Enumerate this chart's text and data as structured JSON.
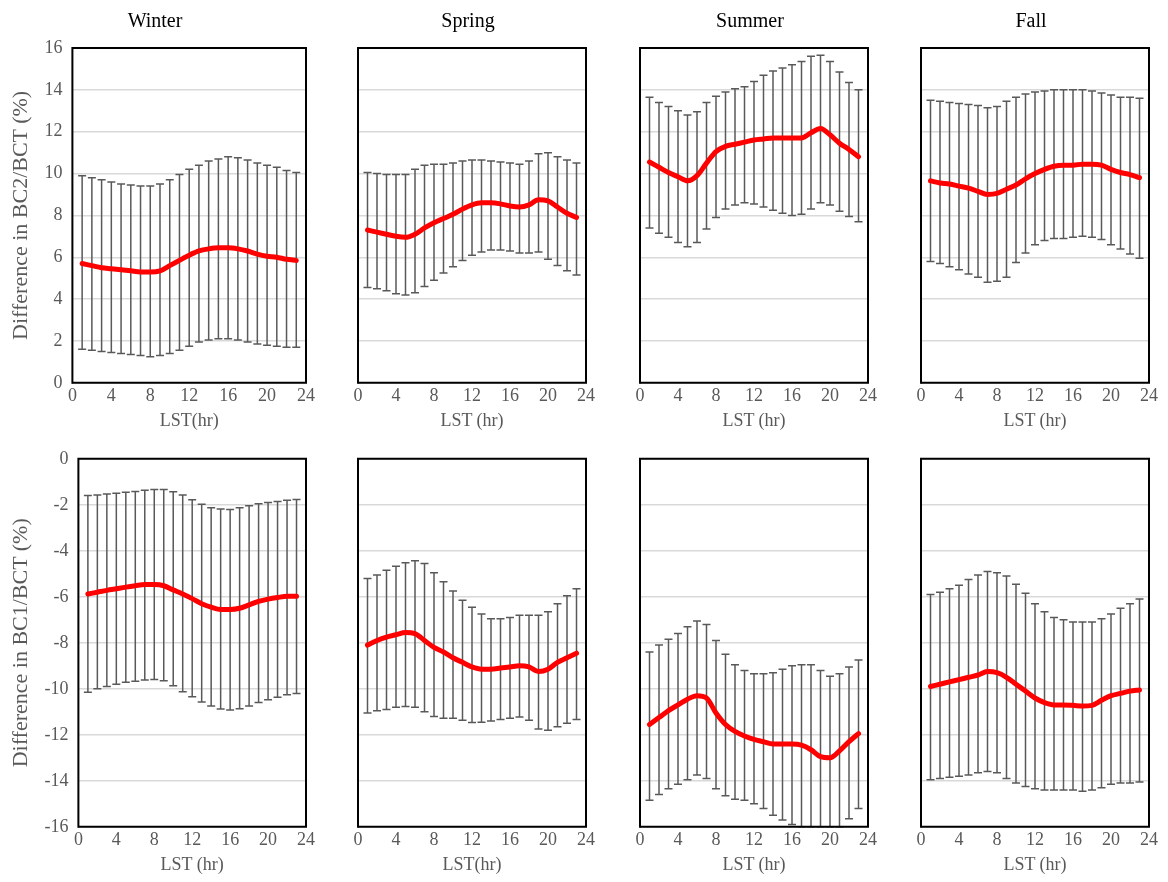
{
  "chart_data": [
    {
      "type": "line",
      "title": "Winter",
      "ylabel": "Difference in BC2/BCT (%)",
      "xlabel": "LST(hr)",
      "x": [
        1,
        2,
        3,
        4,
        5,
        6,
        7,
        8,
        9,
        10,
        11,
        12,
        13,
        14,
        15,
        16,
        17,
        18,
        19,
        20,
        21,
        22,
        23
      ],
      "xlim": [
        0,
        24
      ],
      "xticks": [
        0,
        4,
        8,
        12,
        16,
        20,
        24
      ],
      "ylim": [
        0,
        16
      ],
      "yticks": [
        0,
        2,
        4,
        6,
        8,
        10,
        12,
        14,
        16
      ],
      "grid": "y",
      "legend": false,
      "marker": "none",
      "series": [
        {
          "color": "#ff0000",
          "values": [
            5.7,
            5.6,
            5.5,
            5.45,
            5.4,
            5.35,
            5.3,
            5.3,
            5.35,
            5.6,
            5.85,
            6.1,
            6.3,
            6.4,
            6.45,
            6.45,
            6.4,
            6.3,
            6.15,
            6.05,
            6.0,
            5.9,
            5.85
          ],
          "errors": [
            [
              1.6,
              9.9
            ],
            [
              1.55,
              9.8
            ],
            [
              1.5,
              9.7
            ],
            [
              1.45,
              9.6
            ],
            [
              1.4,
              9.5
            ],
            [
              1.35,
              9.45
            ],
            [
              1.3,
              9.4
            ],
            [
              1.25,
              9.4
            ],
            [
              1.3,
              9.5
            ],
            [
              1.4,
              9.7
            ],
            [
              1.55,
              9.95
            ],
            [
              1.75,
              10.2
            ],
            [
              1.95,
              10.4
            ],
            [
              2.05,
              10.6
            ],
            [
              2.1,
              10.7
            ],
            [
              2.1,
              10.8
            ],
            [
              2.05,
              10.75
            ],
            [
              1.95,
              10.65
            ],
            [
              1.85,
              10.5
            ],
            [
              1.8,
              10.4
            ],
            [
              1.75,
              10.3
            ],
            [
              1.7,
              10.15
            ],
            [
              1.7,
              10.05
            ]
          ]
        }
      ]
    },
    {
      "type": "line",
      "title": "Spring",
      "xlabel": "LST (hr)",
      "x": [
        1,
        2,
        3,
        4,
        5,
        6,
        7,
        8,
        9,
        10,
        11,
        12,
        13,
        14,
        15,
        16,
        17,
        18,
        19,
        20,
        21,
        22,
        23
      ],
      "xlim": [
        0,
        24
      ],
      "xticks": [
        0,
        4,
        8,
        12,
        16,
        20,
        24
      ],
      "ylim": [
        0,
        16
      ],
      "yticks": [
        0,
        2,
        4,
        6,
        8,
        10,
        12,
        14,
        16
      ],
      "grid": "y",
      "legend": false,
      "marker": "none",
      "tick_labels": "x",
      "series": [
        {
          "color": "#ff0000",
          "values": [
            7.3,
            7.2,
            7.1,
            7.0,
            6.95,
            7.1,
            7.4,
            7.65,
            7.85,
            8.05,
            8.3,
            8.5,
            8.6,
            8.6,
            8.55,
            8.45,
            8.4,
            8.5,
            8.75,
            8.7,
            8.4,
            8.1,
            7.9
          ],
          "errors": [
            [
              4.55,
              10.05
            ],
            [
              4.5,
              10.0
            ],
            [
              4.4,
              9.95
            ],
            [
              4.25,
              9.95
            ],
            [
              4.2,
              9.95
            ],
            [
              4.3,
              10.2
            ],
            [
              4.6,
              10.4
            ],
            [
              4.9,
              10.45
            ],
            [
              5.25,
              10.45
            ],
            [
              5.55,
              10.5
            ],
            [
              5.85,
              10.6
            ],
            [
              6.1,
              10.65
            ],
            [
              6.25,
              10.65
            ],
            [
              6.35,
              10.6
            ],
            [
              6.35,
              10.55
            ],
            [
              6.3,
              10.5
            ],
            [
              6.2,
              10.45
            ],
            [
              6.2,
              10.6
            ],
            [
              6.25,
              10.95
            ],
            [
              5.9,
              11.0
            ],
            [
              5.6,
              10.8
            ],
            [
              5.35,
              10.65
            ],
            [
              5.15,
              10.5
            ]
          ]
        }
      ]
    },
    {
      "type": "line",
      "title": "Summer",
      "xlabel": "LST (hr)",
      "x": [
        1,
        2,
        3,
        4,
        5,
        6,
        7,
        8,
        9,
        10,
        11,
        12,
        13,
        14,
        15,
        16,
        17,
        18,
        19,
        20,
        21,
        22,
        23
      ],
      "xlim": [
        0,
        24
      ],
      "xticks": [
        0,
        4,
        8,
        12,
        16,
        20,
        24
      ],
      "ylim": [
        0,
        16
      ],
      "yticks": [
        0,
        2,
        4,
        6,
        8,
        10,
        12,
        14,
        16
      ],
      "grid": "y",
      "legend": false,
      "marker": "none",
      "tick_labels": "x",
      "series": [
        {
          "color": "#ff0000",
          "values": [
            10.55,
            10.3,
            10.05,
            9.85,
            9.65,
            9.9,
            10.5,
            11.05,
            11.3,
            11.4,
            11.5,
            11.6,
            11.65,
            11.7,
            11.7,
            11.7,
            11.7,
            11.95,
            12.15,
            11.85,
            11.45,
            11.15,
            10.8
          ],
          "errors": [
            [
              7.4,
              13.65
            ],
            [
              7.15,
              13.4
            ],
            [
              6.95,
              13.2
            ],
            [
              6.7,
              13.0
            ],
            [
              6.5,
              12.8
            ],
            [
              6.7,
              12.95
            ],
            [
              7.35,
              13.4
            ],
            [
              7.9,
              13.7
            ],
            [
              8.3,
              13.9
            ],
            [
              8.5,
              14.05
            ],
            [
              8.6,
              14.15
            ],
            [
              8.55,
              14.4
            ],
            [
              8.4,
              14.7
            ],
            [
              8.25,
              14.9
            ],
            [
              8.1,
              15.05
            ],
            [
              8.0,
              15.2
            ],
            [
              8.05,
              15.35
            ],
            [
              8.3,
              15.6
            ],
            [
              8.6,
              15.65
            ],
            [
              8.5,
              15.35
            ],
            [
              8.2,
              14.85
            ],
            [
              7.95,
              14.35
            ],
            [
              7.7,
              14.0
            ]
          ]
        }
      ]
    },
    {
      "type": "line",
      "title": "Fall",
      "xlabel": "LST (hr)",
      "x": [
        1,
        2,
        3,
        4,
        5,
        6,
        7,
        8,
        9,
        10,
        11,
        12,
        13,
        14,
        15,
        16,
        17,
        18,
        19,
        20,
        21,
        22,
        23
      ],
      "xlim": [
        0,
        24
      ],
      "xticks": [
        0,
        4,
        8,
        12,
        16,
        20,
        24
      ],
      "ylim": [
        0,
        16
      ],
      "yticks": [
        0,
        2,
        4,
        6,
        8,
        10,
        12,
        14,
        16
      ],
      "grid": "y",
      "legend": false,
      "marker": "none",
      "tick_labels": "x",
      "series": [
        {
          "color": "#ff0000",
          "values": [
            9.65,
            9.55,
            9.5,
            9.4,
            9.3,
            9.15,
            9.0,
            9.05,
            9.25,
            9.45,
            9.75,
            10.0,
            10.2,
            10.35,
            10.4,
            10.4,
            10.45,
            10.45,
            10.4,
            10.2,
            10.05,
            9.95,
            9.8
          ],
          "errors": [
            [
              5.8,
              13.5
            ],
            [
              5.7,
              13.45
            ],
            [
              5.55,
              13.4
            ],
            [
              5.4,
              13.35
            ],
            [
              5.2,
              13.3
            ],
            [
              5.05,
              13.25
            ],
            [
              4.8,
              13.15
            ],
            [
              4.85,
              13.2
            ],
            [
              5.05,
              13.45
            ],
            [
              5.75,
              13.65
            ],
            [
              6.2,
              13.8
            ],
            [
              6.6,
              13.9
            ],
            [
              6.8,
              13.95
            ],
            [
              6.9,
              14.0
            ],
            [
              6.9,
              14.0
            ],
            [
              6.95,
              14.0
            ],
            [
              7.0,
              14.0
            ],
            [
              6.95,
              13.95
            ],
            [
              6.85,
              13.85
            ],
            [
              6.6,
              13.75
            ],
            [
              6.4,
              13.65
            ],
            [
              6.15,
              13.65
            ],
            [
              5.95,
              13.6
            ]
          ]
        }
      ]
    },
    {
      "type": "line",
      "ylabel": "Difference in BC1/BCT (%)",
      "xlabel": "LST (hr)",
      "x": [
        1,
        2,
        3,
        4,
        5,
        6,
        7,
        8,
        9,
        10,
        11,
        12,
        13,
        14,
        15,
        16,
        17,
        18,
        19,
        20,
        21,
        22,
        23
      ],
      "xlim": [
        0,
        24
      ],
      "xticks": [
        0,
        4,
        8,
        12,
        16,
        20,
        24
      ],
      "ylim": [
        -16,
        0
      ],
      "yticks": [
        -16,
        -14,
        -12,
        -10,
        -8,
        -6,
        -4,
        -2,
        0
      ],
      "grid": "y",
      "legend": false,
      "marker": "none",
      "series": [
        {
          "color": "#ff0000",
          "values": [
            -5.88,
            -5.8,
            -5.72,
            -5.65,
            -5.58,
            -5.52,
            -5.47,
            -5.47,
            -5.52,
            -5.7,
            -5.88,
            -6.08,
            -6.3,
            -6.45,
            -6.55,
            -6.55,
            -6.5,
            -6.35,
            -6.2,
            -6.1,
            -6.03,
            -5.98,
            -5.98
          ],
          "errors": [
            [
              -10.15,
              -1.6
            ],
            [
              -10.0,
              -1.57
            ],
            [
              -9.9,
              -1.53
            ],
            [
              -9.8,
              -1.5
            ],
            [
              -9.72,
              -1.45
            ],
            [
              -9.67,
              -1.42
            ],
            [
              -9.62,
              -1.37
            ],
            [
              -9.6,
              -1.33
            ],
            [
              -9.65,
              -1.33
            ],
            [
              -9.87,
              -1.43
            ],
            [
              -10.13,
              -1.57
            ],
            [
              -10.35,
              -1.78
            ],
            [
              -10.57,
              -1.98
            ],
            [
              -10.75,
              -2.13
            ],
            [
              -10.88,
              -2.18
            ],
            [
              -10.92,
              -2.2
            ],
            [
              -10.87,
              -2.13
            ],
            [
              -10.75,
              -2.04
            ],
            [
              -10.6,
              -1.95
            ],
            [
              -10.48,
              -1.9
            ],
            [
              -10.37,
              -1.86
            ],
            [
              -10.26,
              -1.8
            ],
            [
              -10.2,
              -1.77
            ]
          ]
        }
      ]
    },
    {
      "type": "line",
      "xlabel": "LST(hr)",
      "x": [
        1,
        2,
        3,
        4,
        5,
        6,
        7,
        8,
        9,
        10,
        11,
        12,
        13,
        14,
        15,
        16,
        17,
        18,
        19,
        20,
        21,
        22,
        23
      ],
      "xlim": [
        0,
        24
      ],
      "xticks": [
        0,
        4,
        8,
        12,
        16,
        20,
        24
      ],
      "ylim": [
        -16,
        0
      ],
      "yticks": [
        -16,
        -14,
        -12,
        -10,
        -8,
        -6,
        -4,
        -2,
        0
      ],
      "grid": "y",
      "legend": false,
      "marker": "none",
      "tick_labels": "x",
      "series": [
        {
          "color": "#ff0000",
          "values": [
            -8.1,
            -7.9,
            -7.75,
            -7.65,
            -7.55,
            -7.6,
            -7.9,
            -8.2,
            -8.4,
            -8.65,
            -8.85,
            -9.05,
            -9.15,
            -9.15,
            -9.1,
            -9.05,
            -9.0,
            -9.05,
            -9.25,
            -9.15,
            -8.85,
            -8.65,
            -8.45
          ],
          "errors": [
            [
              -11.05,
              -5.2
            ],
            [
              -10.95,
              -5.05
            ],
            [
              -10.9,
              -4.85
            ],
            [
              -10.8,
              -4.67
            ],
            [
              -10.77,
              -4.52
            ],
            [
              -10.8,
              -4.43
            ],
            [
              -11.0,
              -4.55
            ],
            [
              -11.2,
              -4.95
            ],
            [
              -11.28,
              -5.35
            ],
            [
              -11.28,
              -5.75
            ],
            [
              -11.37,
              -6.15
            ],
            [
              -11.47,
              -6.45
            ],
            [
              -11.45,
              -6.75
            ],
            [
              -11.4,
              -6.95
            ],
            [
              -11.33,
              -6.95
            ],
            [
              -11.28,
              -6.9
            ],
            [
              -11.23,
              -6.8
            ],
            [
              -11.37,
              -6.8
            ],
            [
              -11.75,
              -6.8
            ],
            [
              -11.8,
              -6.65
            ],
            [
              -11.65,
              -6.3
            ],
            [
              -11.5,
              -5.95
            ],
            [
              -11.33,
              -5.65
            ]
          ]
        }
      ]
    },
    {
      "type": "line",
      "xlabel": "LST (hr)",
      "x": [
        1,
        2,
        3,
        4,
        5,
        6,
        7,
        8,
        9,
        10,
        11,
        12,
        13,
        14,
        15,
        16,
        17,
        18,
        19,
        20,
        21,
        22,
        23
      ],
      "xlim": [
        0,
        24
      ],
      "xticks": [
        0,
        4,
        8,
        12,
        16,
        20,
        24
      ],
      "ylim": [
        -16,
        0
      ],
      "yticks": [
        -16,
        -14,
        -12,
        -10,
        -8,
        -6,
        -4,
        -2,
        0
      ],
      "grid": "y",
      "legend": false,
      "marker": "none",
      "tick_labels": "x",
      "series": [
        {
          "color": "#ff0000",
          "values": [
            -11.55,
            -11.25,
            -10.95,
            -10.7,
            -10.45,
            -10.3,
            -10.4,
            -11.05,
            -11.55,
            -11.85,
            -12.05,
            -12.2,
            -12.3,
            -12.4,
            -12.4,
            -12.4,
            -12.45,
            -12.65,
            -12.95,
            -13.0,
            -12.7,
            -12.3,
            -11.95
          ],
          "errors": [
            [
              -14.85,
              -8.4
            ],
            [
              -14.6,
              -8.1
            ],
            [
              -14.35,
              -7.85
            ],
            [
              -14.15,
              -7.6
            ],
            [
              -13.95,
              -7.3
            ],
            [
              -13.75,
              -7.05
            ],
            [
              -13.9,
              -7.2
            ],
            [
              -14.35,
              -7.9
            ],
            [
              -14.65,
              -8.5
            ],
            [
              -14.8,
              -8.95
            ],
            [
              -14.85,
              -9.2
            ],
            [
              -15.0,
              -9.35
            ],
            [
              -15.2,
              -9.35
            ],
            [
              -15.5,
              -9.3
            ],
            [
              -15.7,
              -9.15
            ],
            [
              -15.9,
              -9.0
            ],
            [
              -16,
              -8.95
            ],
            [
              -16,
              -8.95
            ],
            [
              -16,
              -9.2
            ],
            [
              -16,
              -9.45
            ],
            [
              -16,
              -9.35
            ],
            [
              -15.65,
              -9.05
            ],
            [
              -15.2,
              -8.75
            ]
          ]
        }
      ]
    },
    {
      "type": "line",
      "xlabel": "LST (hr)",
      "x": [
        1,
        2,
        3,
        4,
        5,
        6,
        7,
        8,
        9,
        10,
        11,
        12,
        13,
        14,
        15,
        16,
        17,
        18,
        19,
        20,
        21,
        22,
        23
      ],
      "xlim": [
        0,
        24
      ],
      "xticks": [
        0,
        4,
        8,
        12,
        16,
        20,
        24
      ],
      "ylim": [
        -16,
        0
      ],
      "yticks": [
        -16,
        -14,
        -12,
        -10,
        -8,
        -6,
        -4,
        -2,
        0
      ],
      "grid": "y",
      "legend": false,
      "marker": "none",
      "tick_labels": "x",
      "series": [
        {
          "color": "#ff0000",
          "values": [
            -9.9,
            -9.8,
            -9.7,
            -9.6,
            -9.5,
            -9.4,
            -9.25,
            -9.3,
            -9.5,
            -9.8,
            -10.1,
            -10.4,
            -10.6,
            -10.7,
            -10.7,
            -10.72,
            -10.75,
            -10.72,
            -10.5,
            -10.3,
            -10.2,
            -10.1,
            -10.05
          ],
          "errors": [
            [
              -13.95,
              -5.9
            ],
            [
              -13.9,
              -5.8
            ],
            [
              -13.85,
              -5.65
            ],
            [
              -13.8,
              -5.5
            ],
            [
              -13.75,
              -5.25
            ],
            [
              -13.65,
              -5.05
            ],
            [
              -13.6,
              -4.9
            ],
            [
              -13.65,
              -4.95
            ],
            [
              -13.9,
              -5.1
            ],
            [
              -14.1,
              -5.45
            ],
            [
              -14.25,
              -5.85
            ],
            [
              -14.35,
              -6.3
            ],
            [
              -14.4,
              -6.65
            ],
            [
              -14.4,
              -6.9
            ],
            [
              -14.4,
              -7.0
            ],
            [
              -14.4,
              -7.1
            ],
            [
              -14.45,
              -7.1
            ],
            [
              -14.4,
              -7.1
            ],
            [
              -14.3,
              -6.95
            ],
            [
              -14.15,
              -6.75
            ],
            [
              -14.1,
              -6.5
            ],
            [
              -14.1,
              -6.3
            ],
            [
              -14.05,
              -6.1
            ]
          ]
        }
      ]
    }
  ]
}
